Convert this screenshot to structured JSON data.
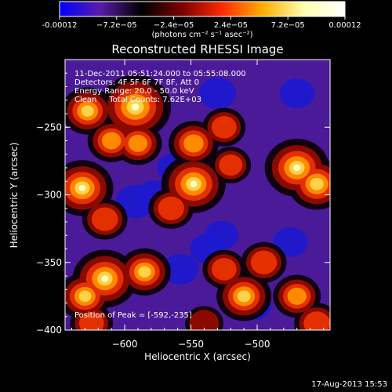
{
  "chart_data": {
    "type": "heatmap",
    "title": "Reconstructed RHESSI Image",
    "xlabel": "Heliocentric X (arcsec)",
    "ylabel": "Heliocentric Y (arcsec)",
    "xlim": [
      -645,
      -445
    ],
    "ylim": [
      -400,
      -200
    ],
    "x_ticks": [
      -600,
      -550,
      -500
    ],
    "y_ticks": [
      -250,
      -300,
      -350,
      -400
    ],
    "colorbar": {
      "ticks": [
        "-0.00012",
        "−7.2e−05",
        "−2.4e−05",
        "2.4e−05",
        "7.2e−05",
        "0.00012"
      ],
      "unit_label": "(photons cm⁻² s⁻¹ asec⁻²)",
      "colors": [
        "#0000ff",
        "#5a1ca8",
        "#000000",
        "#7a0000",
        "#ff2a00",
        "#ffb000",
        "#ffffb0",
        "#ffffff"
      ]
    },
    "info": {
      "time": "11-Dec-2011 05:51:24.000 to 05:55:08.000",
      "detectors": "Detectors: 4F 5F 6F 7F 8F, Att 0",
      "energy": "Energy Range: 20.0 - 50.0 keV",
      "clean": "Clean     Total Counts: 7.62E+03"
    },
    "peak": "Position of Peak = [-592,-235]",
    "sources": [
      {
        "x": -592,
        "y": -235,
        "intensity": 1.0
      },
      {
        "x": -628,
        "y": -238,
        "intensity": 0.6
      },
      {
        "x": -610,
        "y": -260,
        "intensity": 0.5
      },
      {
        "x": -632,
        "y": -295,
        "intensity": 0.8
      },
      {
        "x": -615,
        "y": -318,
        "intensity": 0.45
      },
      {
        "x": -590,
        "y": -262,
        "intensity": 0.5
      },
      {
        "x": -548,
        "y": -262,
        "intensity": 0.55
      },
      {
        "x": -525,
        "y": -250,
        "intensity": 0.4
      },
      {
        "x": -548,
        "y": -292,
        "intensity": 0.85
      },
      {
        "x": -565,
        "y": -310,
        "intensity": 0.45
      },
      {
        "x": -470,
        "y": -280,
        "intensity": 0.85
      },
      {
        "x": -455,
        "y": -292,
        "intensity": 0.7
      },
      {
        "x": -520,
        "y": -278,
        "intensity": 0.35
      },
      {
        "x": -615,
        "y": -362,
        "intensity": 0.85
      },
      {
        "x": -630,
        "y": -375,
        "intensity": 0.6
      },
      {
        "x": -585,
        "y": -357,
        "intensity": 0.6
      },
      {
        "x": -625,
        "y": -395,
        "intensity": 0.4
      },
      {
        "x": -510,
        "y": -375,
        "intensity": 0.65
      },
      {
        "x": -495,
        "y": -350,
        "intensity": 0.45
      },
      {
        "x": -525,
        "y": -355,
        "intensity": 0.4
      },
      {
        "x": -470,
        "y": -375,
        "intensity": 0.5
      },
      {
        "x": -455,
        "y": -395,
        "intensity": 0.45
      },
      {
        "x": -540,
        "y": -395,
        "intensity": 0.3
      }
    ],
    "negatives": [
      {
        "x": -530,
        "y": -225,
        "intensity": 0.5
      },
      {
        "x": -470,
        "y": -225,
        "intensity": 0.4
      },
      {
        "x": -562,
        "y": -280,
        "intensity": 0.45
      },
      {
        "x": -578,
        "y": -300,
        "intensity": 0.35
      },
      {
        "x": -592,
        "y": -305,
        "intensity": 0.6
      },
      {
        "x": -537,
        "y": -340,
        "intensity": 0.45
      },
      {
        "x": -558,
        "y": -355,
        "intensity": 0.45
      },
      {
        "x": -527,
        "y": -330,
        "intensity": 0.35
      },
      {
        "x": -475,
        "y": -335,
        "intensity": 0.4
      },
      {
        "x": -502,
        "y": -382,
        "intensity": 0.35
      }
    ]
  },
  "footer": {
    "timestamp": "17-Aug-2013 15:53"
  }
}
